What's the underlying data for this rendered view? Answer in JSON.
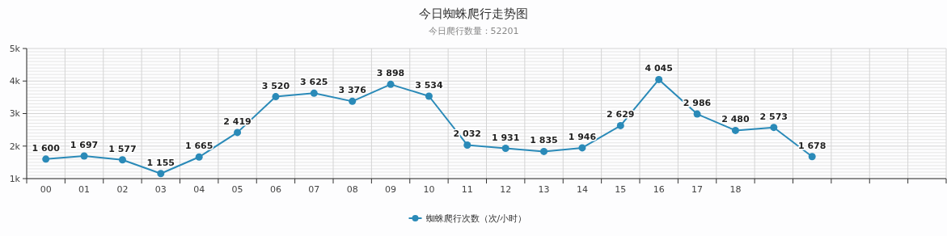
{
  "chart_data": {
    "type": "line",
    "title": "今日蜘蛛爬行走势图",
    "subtitle": "今日爬行数量：52201",
    "categories": [
      "00",
      "01",
      "02",
      "03",
      "04",
      "05",
      "06",
      "07",
      "08",
      "09",
      "10",
      "11",
      "12",
      "13",
      "14",
      "15",
      "16",
      "17",
      "18",
      null,
      null,
      null,
      null,
      null
    ],
    "series": [
      {
        "name": "蜘蛛爬行次数（次/小时）",
        "color": "#2a8ab8",
        "values": [
          1600,
          1697,
          1577,
          1155,
          1665,
          2419,
          3520,
          3625,
          3376,
          3898,
          3534,
          2032,
          1931,
          1835,
          1946,
          2629,
          4045,
          2986,
          2480,
          2573,
          1678,
          null,
          null,
          null
        ],
        "value_labels": [
          "1 600",
          "1 697",
          "1 577",
          "1 155",
          "1 665",
          "2 419",
          "3 520",
          "3 625",
          "3 376",
          "3 898",
          "3 534",
          "2 032",
          "1 931",
          "1 835",
          "1 946",
          "2 629",
          "4 045",
          "2 986",
          "2 480",
          "2 573",
          "1 678",
          null,
          null,
          null
        ]
      }
    ],
    "ylim": [
      1000,
      5000
    ],
    "yticks": [
      {
        "value": 1000,
        "label": "1k"
      },
      {
        "value": 2000,
        "label": "2k"
      },
      {
        "value": 3000,
        "label": "3k"
      },
      {
        "value": 4000,
        "label": "4k"
      },
      {
        "value": 5000,
        "label": "5k"
      }
    ],
    "grid": true,
    "legend": "bottom",
    "marker": "circle",
    "line_style": "solid"
  }
}
